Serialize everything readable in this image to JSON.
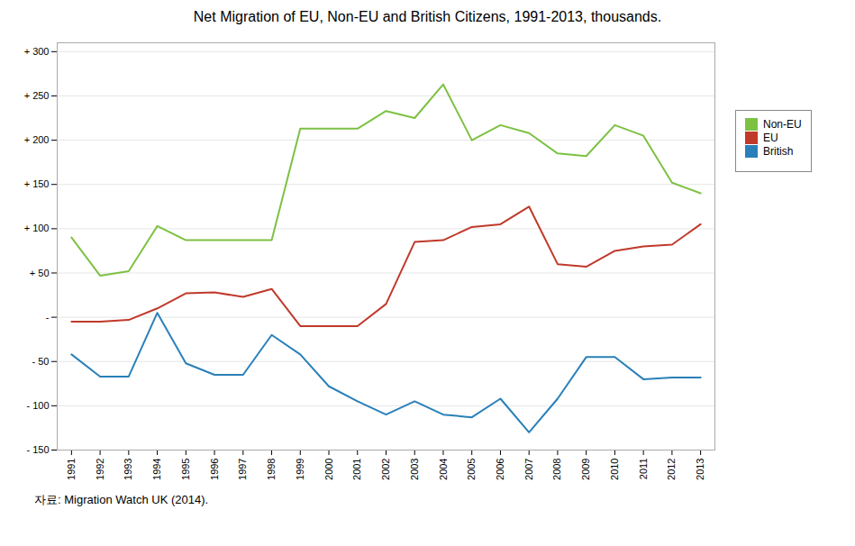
{
  "chart_data": {
    "type": "line",
    "title": "Net Migration of EU, Non-EU and British Citizens, 1991-2013, thousands.",
    "source": "자료: Migration Watch UK (2014).",
    "x": [
      1991,
      1992,
      1993,
      1994,
      1995,
      1996,
      1997,
      1998,
      1999,
      2000,
      2001,
      2002,
      2003,
      2004,
      2005,
      2006,
      2007,
      2008,
      2009,
      2010,
      2011,
      2012,
      2013
    ],
    "series": [
      {
        "name": "Non-EU",
        "color": "#7dc143",
        "values": [
          90,
          47,
          52,
          103,
          87,
          87,
          87,
          87,
          213,
          213,
          213,
          233,
          225,
          263,
          200,
          217,
          208,
          185,
          182,
          217,
          205,
          152,
          140
        ]
      },
      {
        "name": "EU",
        "color": "#c0392b",
        "values": [
          -5,
          -5,
          -3,
          10,
          27,
          28,
          23,
          32,
          -10,
          -10,
          -10,
          15,
          85,
          87,
          102,
          105,
          125,
          60,
          57,
          75,
          80,
          82,
          105
        ]
      },
      {
        "name": "British",
        "color": "#2980b9",
        "values": [
          -42,
          -67,
          -67,
          5,
          -52,
          -65,
          -65,
          -20,
          -42,
          -78,
          -95,
          -110,
          -95,
          -110,
          -113,
          -92,
          -130,
          -92,
          -45,
          -45,
          -70,
          -68,
          -68
        ]
      }
    ],
    "xlim": [
      1990.5,
      2013.5
    ],
    "xticks": [
      1991,
      1992,
      1993,
      1994,
      1995,
      1996,
      1997,
      1998,
      1999,
      2000,
      2001,
      2002,
      2003,
      2004,
      2005,
      2006,
      2007,
      2008,
      2009,
      2010,
      2011,
      2012,
      2013
    ],
    "ylim": [
      -150,
      310
    ],
    "yticks": [
      {
        "value": -150,
        "label": "- 150"
      },
      {
        "value": -100,
        "label": "- 100"
      },
      {
        "value": -50,
        "label": "- 50"
      },
      {
        "value": 0,
        "label": "-"
      },
      {
        "value": 50,
        "label": "+ 50"
      },
      {
        "value": 100,
        "label": "+ 100"
      },
      {
        "value": 150,
        "label": "+ 150"
      },
      {
        "value": 200,
        "label": "+ 200"
      },
      {
        "value": 250,
        "label": "+ 250"
      },
      {
        "value": 300,
        "label": "+ 300"
      }
    ],
    "grid": true,
    "legend": "right"
  }
}
